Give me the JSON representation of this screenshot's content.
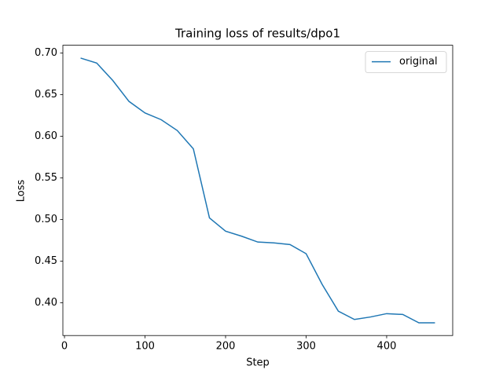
{
  "chart_data": {
    "type": "line",
    "title": "Training loss of results/dpo1",
    "xlabel": "Step",
    "ylabel": "Loss",
    "x": [
      20,
      40,
      60,
      80,
      100,
      120,
      140,
      160,
      180,
      200,
      220,
      240,
      260,
      280,
      300,
      320,
      340,
      360,
      380,
      400,
      420,
      440,
      460
    ],
    "series": [
      {
        "name": "original",
        "color": "#1f77b4",
        "values": [
          0.694,
          0.688,
          0.667,
          0.642,
          0.628,
          0.62,
          0.607,
          0.585,
          0.502,
          0.486,
          0.48,
          0.473,
          0.472,
          0.47,
          0.459,
          0.422,
          0.39,
          0.38,
          0.383,
          0.387,
          0.386,
          0.376,
          0.376
        ]
      }
    ],
    "xlim": [
      -2,
      482
    ],
    "ylim": [
      0.3607,
      0.7094
    ],
    "xticks": [
      0,
      100,
      200,
      300,
      400
    ],
    "yticks": [
      {
        "value": 0.4,
        "label": "0.40"
      },
      {
        "value": 0.45,
        "label": "0.45"
      },
      {
        "value": 0.5,
        "label": "0.50"
      },
      {
        "value": 0.55,
        "label": "0.55"
      },
      {
        "value": 0.6,
        "label": "0.60"
      },
      {
        "value": 0.65,
        "label": "0.65"
      },
      {
        "value": 0.7,
        "label": "0.70"
      }
    ],
    "legend": "upper right",
    "grid": false
  }
}
